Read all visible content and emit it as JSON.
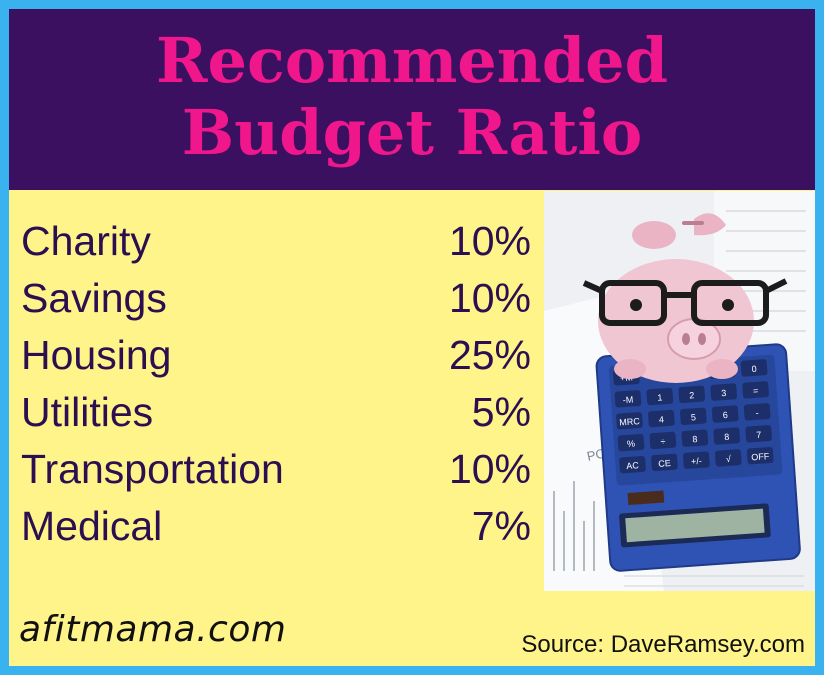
{
  "title": {
    "line1": "Recommended",
    "line2": "Budget Ratio"
  },
  "budget_items": [
    {
      "label": "Charity",
      "value": "10%"
    },
    {
      "label": "Savings",
      "value": "10%"
    },
    {
      "label": "Housing",
      "value": "25%"
    },
    {
      "label": "Utilities",
      "value": "5%"
    },
    {
      "label": "Transportation",
      "value": "10%"
    },
    {
      "label": "Medical",
      "value": "7%"
    }
  ],
  "photo": {
    "description_icon": "piggy-bank-calculator-illustration",
    "calculator_keys": [
      [
        "+M",
        "",
        "",
        "",
        "0"
      ],
      [
        "-M",
        "1",
        "2",
        "3",
        "="
      ],
      [
        "MRC",
        "4",
        "5",
        "6",
        "-"
      ],
      [
        "%",
        "÷",
        "8",
        "8",
        "7"
      ],
      [
        "AC",
        "CE",
        "+/-",
        "√",
        "OFF"
      ]
    ],
    "paper_text": "PORT"
  },
  "footer": {
    "brand": "afitmama.com",
    "source": "Source: DaveRamsey.com"
  },
  "colors": {
    "outer_border": "#39b2ef",
    "header_bg": "#3b1060",
    "title_text": "#f0168b",
    "panel_bg": "#fff48a",
    "body_text": "#2b0f50",
    "piggy_pink": "#f1c6d3",
    "calculator_blue": "#2f53b4"
  }
}
